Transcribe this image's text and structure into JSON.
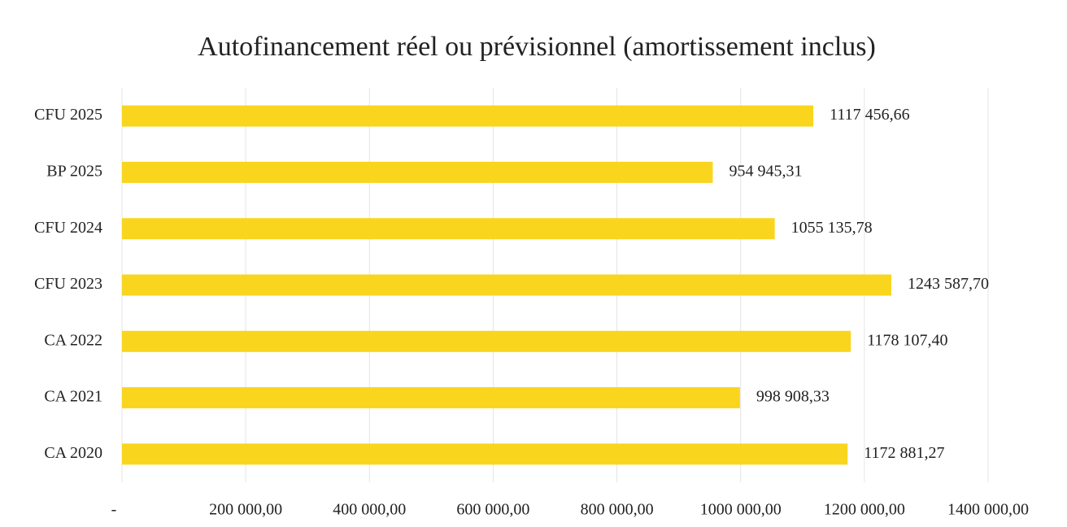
{
  "chart_data": {
    "type": "bar",
    "orientation": "horizontal",
    "title": "Autofinancement réel ou prévisionnel (amortissement inclus)",
    "categories": [
      "CFU 2025",
      "BP 2025",
      "CFU 2024",
      "CFU 2023",
      "CA 2022",
      "CA 2021",
      "CA 2020"
    ],
    "values": [
      1117456.66,
      954945.31,
      1055135.78,
      1243587.7,
      1178107.4,
      998908.33,
      1172881.27
    ],
    "value_labels": [
      "1117 456,66",
      "954 945,31",
      "1055 135,78",
      "1243 587,70",
      "1178 107,40",
      "998 908,33",
      "1172 881,27"
    ],
    "color": "#f9d51e",
    "xlim": [
      0,
      1400000
    ],
    "xticks": [
      {
        "value": 0,
        "label": "-"
      },
      {
        "value": 200000,
        "label": "200 000,00"
      },
      {
        "value": 400000,
        "label": "400 000,00"
      },
      {
        "value": 600000,
        "label": "600 000,00"
      },
      {
        "value": 800000,
        "label": "800 000,00"
      },
      {
        "value": 1000000,
        "label": "1000 000,00"
      },
      {
        "value": 1200000,
        "label": "1200 000,00"
      },
      {
        "value": 1400000,
        "label": "1400 000,00"
      }
    ],
    "grid": true
  }
}
